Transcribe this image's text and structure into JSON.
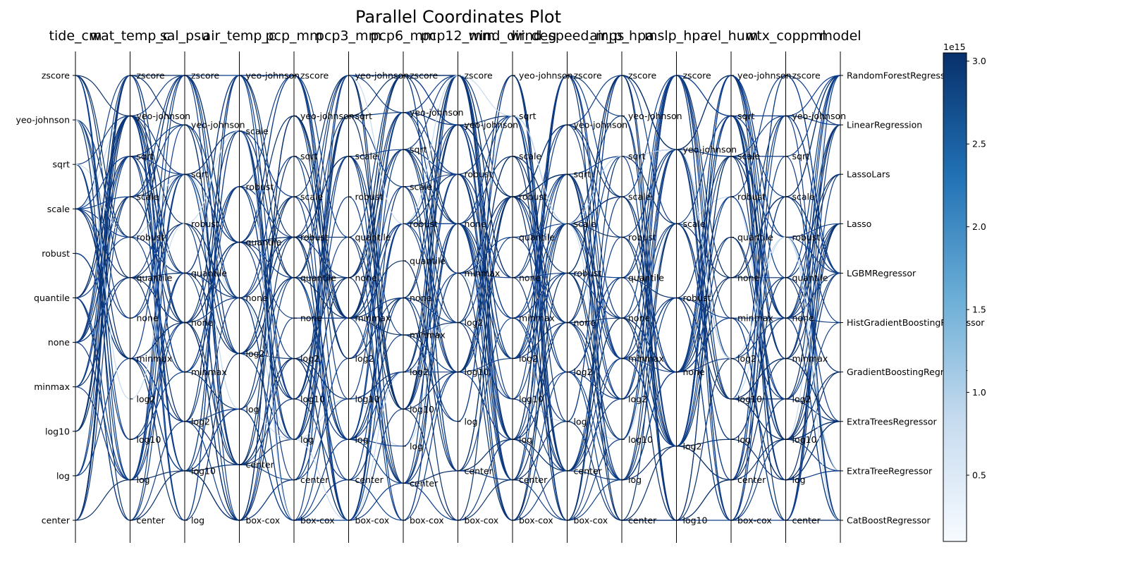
{
  "chart_data": {
    "type": "parallel_coordinates",
    "title": "Parallel Coordinates Plot",
    "axes": [
      {
        "name": "tide_cm",
        "categories": [
          "center",
          "log",
          "log10",
          "minmax",
          "none",
          "quantile",
          "robust",
          "scale",
          "sqrt",
          "yeo-johnson",
          "zscore"
        ]
      },
      {
        "name": "wat_temp_c",
        "categories": [
          "center",
          "log",
          "log10",
          "log2",
          "minmax",
          "none",
          "quantile",
          "robust",
          "scale",
          "sqrt",
          "yeo-johnson",
          "zscore"
        ]
      },
      {
        "name": "sal_psu",
        "categories": [
          "log",
          "log10",
          "log2",
          "minmax",
          "none",
          "quantile",
          "robust",
          "sqrt",
          "yeo-johnson",
          "zscore"
        ]
      },
      {
        "name": "air_temp_c",
        "categories": [
          "box-cox",
          "center",
          "log",
          "log2",
          "none",
          "quantile",
          "robust",
          "scale",
          "yeo-johnson"
        ]
      },
      {
        "name": "pcp_mm",
        "categories": [
          "box-cox",
          "center",
          "log",
          "log10",
          "log2",
          "none",
          "quantile",
          "robust",
          "scale",
          "sqrt",
          "yeo-johnson",
          "zscore"
        ]
      },
      {
        "name": "pcp3_mm",
        "categories": [
          "box-cox",
          "center",
          "log",
          "log10",
          "log2",
          "minmax",
          "none",
          "quantile",
          "robust",
          "scale",
          "sqrt",
          "yeo-johnson"
        ]
      },
      {
        "name": "pcp6_mm",
        "categories": [
          "box-cox",
          "center",
          "log",
          "log10",
          "log2",
          "minmax",
          "none",
          "quantile",
          "robust",
          "scale",
          "sqrt",
          "yeo-johnson",
          "zscore"
        ]
      },
      {
        "name": "pcp12_mm",
        "categories": [
          "box-cox",
          "center",
          "log",
          "log10",
          "log2",
          "minmax",
          "none",
          "robust",
          "yeo-johnson",
          "zscore"
        ]
      },
      {
        "name": "wind_dir_deg",
        "categories": [
          "box-cox",
          "center",
          "log",
          "log10",
          "log2",
          "minmax",
          "none",
          "quantile",
          "robust",
          "scale",
          "sqrt",
          "yeo-johnson"
        ]
      },
      {
        "name": "wind_speed_mps",
        "categories": [
          "box-cox",
          "center",
          "log",
          "log2",
          "none",
          "robust",
          "scale",
          "sqrt",
          "yeo-johnson",
          "zscore"
        ]
      },
      {
        "name": "air_p_hpa",
        "categories": [
          "center",
          "log",
          "log10",
          "log2",
          "minmax",
          "none",
          "quantile",
          "robust",
          "scale",
          "sqrt",
          "yeo-johnson",
          "zscore"
        ]
      },
      {
        "name": "mslp_hpa",
        "categories": [
          "log10",
          "log2",
          "none",
          "robust",
          "scale",
          "yeo-johnson",
          "zscore"
        ]
      },
      {
        "name": "rel_hum",
        "categories": [
          "box-cox",
          "center",
          "log",
          "log10",
          "log2",
          "minmax",
          "none",
          "quantile",
          "robust",
          "scale",
          "sqrt",
          "yeo-johnson"
        ]
      },
      {
        "name": "wtx_coppml",
        "categories": [
          "center",
          "log",
          "log10",
          "log2",
          "minmax",
          "none",
          "quantile",
          "robust",
          "scale",
          "sqrt",
          "yeo-johnson",
          "zscore"
        ]
      },
      {
        "name": "model",
        "categories": [
          "CatBoostRegressor",
          "ExtraTreeRegressor",
          "ExtraTreesRegressor",
          "GradientBoostingRegressor",
          "HistGradientBoostingRegressor",
          "LGBMRegressor",
          "Lasso",
          "LassoLars",
          "LinearRegression",
          "RandomForestRegressor"
        ]
      }
    ],
    "colorbar": {
      "colormap": "Blues",
      "min": 0.1,
      "max": 3.05,
      "ticks": [
        "0.5",
        "1.0",
        "1.5",
        "2.0",
        "2.5",
        "3.0"
      ],
      "offset_label": "1e15"
    },
    "series_count": 60,
    "line_color": "#08306b"
  }
}
